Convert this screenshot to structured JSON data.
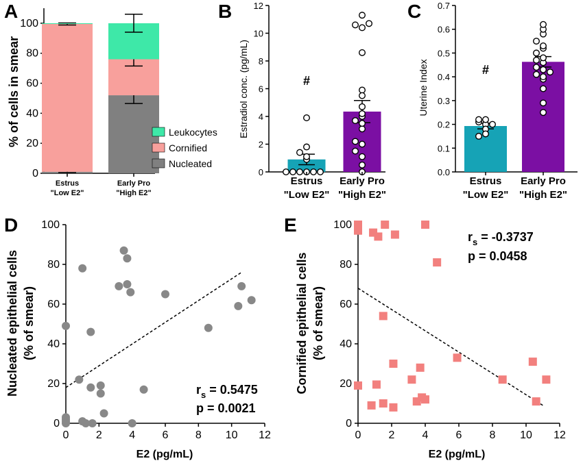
{
  "figure": {
    "panel_labels": [
      "A",
      "B",
      "C",
      "D",
      "E"
    ]
  },
  "colors": {
    "leukocytes": "#3ee8a8",
    "cornified": "#f8a09c",
    "nucleated": "#808080",
    "estrus_bar": "#16a3b6",
    "early_pro_bar": "#7b0fa3",
    "scatter_d": "#888888",
    "scatter_e": "#f2807e"
  },
  "chart_data": [
    {
      "panel": "A",
      "type": "bar",
      "subtype": "stacked",
      "ylabel": "% of cells in smear",
      "ylim": [
        0,
        110
      ],
      "yticks": [
        "0",
        "20",
        "40",
        "60",
        "80",
        "100"
      ],
      "categories": [
        [
          "Estrus",
          "\"Low E2\""
        ],
        [
          "Early Pro",
          "\"High E2\""
        ]
      ],
      "series": [
        {
          "name": "Nucleated",
          "values": [
            1,
            52
          ],
          "err": [
            0.5,
            5.5
          ]
        },
        {
          "name": "Cornified",
          "values": [
            98.5,
            24
          ],
          "err": [
            0.7,
            4.5
          ]
        },
        {
          "name": "Leukocytes",
          "values": [
            0.5,
            24
          ],
          "err": [
            0,
            6
          ]
        }
      ],
      "legend": [
        "Leukocytes",
        "Cornified",
        "Nucleated"
      ],
      "legend_position": "bottom-right"
    },
    {
      "panel": "B",
      "type": "bar",
      "ylabel": "Estradiol conc. (pg/mL)",
      "ylim": [
        0,
        12
      ],
      "yticks": [
        "0",
        "2",
        "4",
        "6",
        "8",
        "10",
        "12"
      ],
      "categories": [
        [
          "Estrus",
          "\"Low E2\""
        ],
        [
          "Early Pro",
          "\"High E2\""
        ]
      ],
      "values": [
        0.9,
        4.35
      ],
      "sem": [
        0.38,
        0.8
      ],
      "annotation": "#",
      "points": [
        [
          0,
          0,
          0,
          0,
          0,
          0,
          0.9,
          1.1,
          1.4,
          1.8,
          3.9
        ],
        [
          0,
          0.5,
          1.1,
          1.5,
          2.0,
          2.2,
          3.1,
          3.5,
          3.7,
          4.0,
          4.2,
          4.7,
          5.9,
          8.6,
          10.4,
          10.6,
          11.3,
          10.7,
          5.5
        ]
      ]
    },
    {
      "panel": "C",
      "type": "bar",
      "ylabel": "Uterine Index",
      "ylim": [
        0,
        0.7
      ],
      "yticks": [
        "0.0",
        "0.1",
        "0.2",
        "0.3",
        "0.4",
        "0.5",
        "0.6",
        "0.7"
      ],
      "categories": [
        [
          "Estrus",
          "\"Low E2\""
        ],
        [
          "Early Pro",
          "\"High E2\""
        ]
      ],
      "values": [
        0.193,
        0.463
      ],
      "sem": [
        0.012,
        0.022
      ],
      "annotation": "#",
      "points": [
        [
          0.2,
          0.21,
          0.22,
          0.18,
          0.2,
          0.22,
          0.16,
          0.15
        ],
        [
          0.25,
          0.29,
          0.35,
          0.39,
          0.4,
          0.41,
          0.42,
          0.43,
          0.44,
          0.46,
          0.47,
          0.48,
          0.5,
          0.52,
          0.53,
          0.55,
          0.58,
          0.6,
          0.62
        ]
      ]
    },
    {
      "panel": "D",
      "type": "scatter",
      "xlabel": "E2 (pg/mL)",
      "ylabel": [
        "Nucleated epithelial cells",
        "(% of smear)"
      ],
      "xlim": [
        0,
        12
      ],
      "ylim": [
        0,
        100
      ],
      "xticks": [
        "0",
        "2",
        "4",
        "6",
        "8",
        "10",
        "12"
      ],
      "yticks": [
        "0",
        "20",
        "40",
        "60",
        "80",
        "100"
      ],
      "points": [
        [
          0,
          0
        ],
        [
          0,
          1
        ],
        [
          0,
          2
        ],
        [
          0,
          3
        ],
        [
          0,
          49
        ],
        [
          0.8,
          22
        ],
        [
          1.0,
          78
        ],
        [
          1.0,
          1
        ],
        [
          1.2,
          0
        ],
        [
          1.5,
          18
        ],
        [
          1.5,
          46
        ],
        [
          1.6,
          0
        ],
        [
          2.1,
          19
        ],
        [
          2.1,
          15
        ],
        [
          2.3,
          5
        ],
        [
          3.2,
          69
        ],
        [
          3.5,
          87
        ],
        [
          3.7,
          83
        ],
        [
          3.7,
          70
        ],
        [
          3.9,
          66
        ],
        [
          4.0,
          0
        ],
        [
          4.7,
          17
        ],
        [
          6.0,
          65
        ],
        [
          8.6,
          48
        ],
        [
          10.4,
          59
        ],
        [
          10.6,
          69
        ],
        [
          11.2,
          62
        ]
      ],
      "fit_line": [
        [
          0,
          18
        ],
        [
          10.6,
          76
        ]
      ],
      "stats": {
        "label": "r",
        "subscript": "s",
        "rho": " = 0.5475",
        "p": "p = 0.0021"
      }
    },
    {
      "panel": "E",
      "type": "scatter",
      "xlabel": "E2 (pg/mL)",
      "ylabel": [
        "Cornified epithelial cells",
        "(% of smear)"
      ],
      "xlim": [
        0,
        12
      ],
      "ylim": [
        0,
        100
      ],
      "xticks": [
        "0",
        "2",
        "4",
        "6",
        "8",
        "10",
        "12"
      ],
      "yticks": [
        "0",
        "20",
        "40",
        "60",
        "80",
        "100"
      ],
      "points": [
        [
          0,
          100
        ],
        [
          0,
          97
        ],
        [
          0,
          19
        ],
        [
          0.8,
          9
        ],
        [
          0.9,
          96
        ],
        [
          1.1,
          19.5
        ],
        [
          1.2,
          94
        ],
        [
          1.5,
          54
        ],
        [
          1.5,
          10
        ],
        [
          1.6,
          100
        ],
        [
          2.1,
          30
        ],
        [
          2.1,
          8
        ],
        [
          2.2,
          95
        ],
        [
          3.2,
          22
        ],
        [
          3.5,
          11
        ],
        [
          3.7,
          28
        ],
        [
          3.8,
          13
        ],
        [
          4.0,
          12
        ],
        [
          4.0,
          100
        ],
        [
          4.7,
          81
        ],
        [
          5.9,
          33
        ],
        [
          8.6,
          22
        ],
        [
          10.4,
          31
        ],
        [
          10.6,
          11
        ],
        [
          11.2,
          22
        ]
      ],
      "fit_line": [
        [
          0,
          68
        ],
        [
          11,
          9
        ]
      ],
      "stats": {
        "label": "r",
        "subscript": "s",
        "rho": " = -0.3737",
        "p": "p = 0.0458"
      }
    }
  ]
}
